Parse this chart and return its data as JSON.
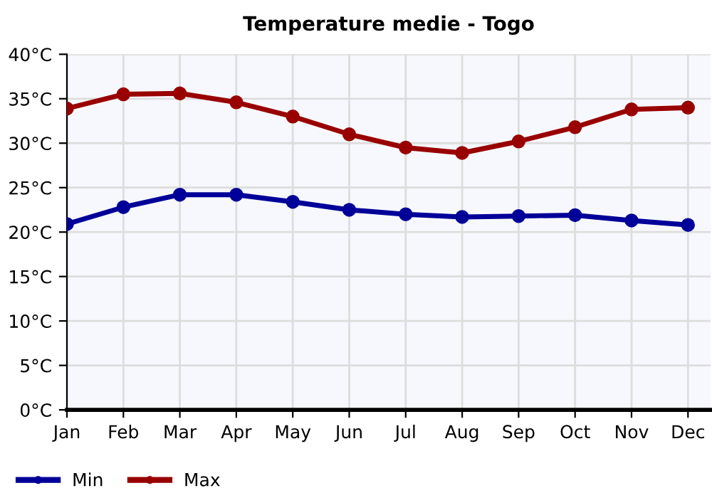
{
  "chart_data": {
    "type": "line",
    "title": "Temperature medie - Togo",
    "categories": [
      "Jan",
      "Feb",
      "Mar",
      "Apr",
      "May",
      "Jun",
      "Jul",
      "Aug",
      "Sep",
      "Oct",
      "Nov",
      "Dec"
    ],
    "series": [
      {
        "name": "Min",
        "color": "#000099",
        "values": [
          20.9,
          22.8,
          24.2,
          24.2,
          23.4,
          22.5,
          22.0,
          21.7,
          21.8,
          21.9,
          21.3,
          20.8
        ]
      },
      {
        "name": "Max",
        "color": "#990000",
        "values": [
          33.9,
          35.5,
          35.6,
          34.6,
          33.0,
          31.0,
          29.5,
          28.9,
          30.2,
          31.8,
          33.8,
          34.0
        ]
      }
    ],
    "ylim": [
      0,
      40
    ],
    "yticks": [
      {
        "value": 0,
        "label": "0°C"
      },
      {
        "value": 5,
        "label": "5°C"
      },
      {
        "value": 10,
        "label": "10°C"
      },
      {
        "value": 15,
        "label": "15°C"
      },
      {
        "value": 20,
        "label": "20°C"
      },
      {
        "value": 25,
        "label": "25°C"
      },
      {
        "value": 30,
        "label": "30°C"
      },
      {
        "value": 35,
        "label": "35°C"
      },
      {
        "value": 40,
        "label": "40°C"
      }
    ],
    "grid": true,
    "legend": "bottom left",
    "marker": "circle",
    "line_style": "solid"
  }
}
